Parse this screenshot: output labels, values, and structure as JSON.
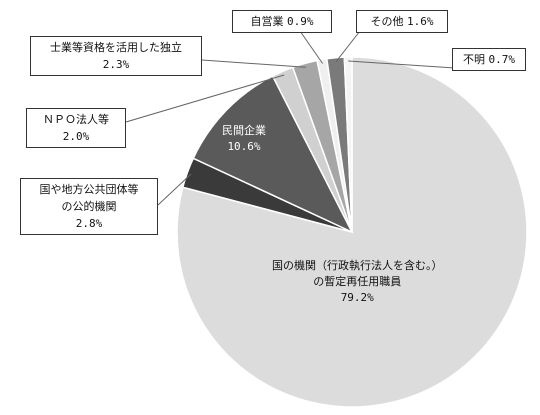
{
  "chart_data": {
    "type": "pie",
    "slices": [
      {
        "label_lines": [
          "国の機関（行政執行法人を含む。）",
          "の暫定再任用職員"
        ],
        "value_text": "79.2%",
        "value": 79.2,
        "color": "#dcdcdc"
      },
      {
        "label_lines": [
          "国や地方公共団体等",
          "の公的機関"
        ],
        "value_text": "2.8%",
        "value": 2.8,
        "color": "#3a3a3a"
      },
      {
        "label_lines": [
          "民間企業"
        ],
        "value_text": "10.6%",
        "value": 10.6,
        "color": "#5a5a5a"
      },
      {
        "label_lines": [
          "ＮＰＯ法人等"
        ],
        "value_text": "2.0%",
        "value": 2.0,
        "color": "#d0d0d0"
      },
      {
        "label_lines": [
          "士業等資格を活用した独立"
        ],
        "value_text": "2.3%",
        "value": 2.3,
        "color": "#a6a6a6"
      },
      {
        "label_lines": [
          "自営業"
        ],
        "value_text": "0.9%",
        "value": 0.9,
        "color": "#efefef"
      },
      {
        "label_lines": [
          "その他"
        ],
        "value_text": "1.6%",
        "value": 1.6,
        "color": "#7a7a7a"
      },
      {
        "label_lines": [
          "不明"
        ],
        "value_text": "0.7%",
        "value": 0.7,
        "color": "#f4f4f4"
      }
    ],
    "start_angle_deg": 0,
    "direction": "clockwise"
  }
}
